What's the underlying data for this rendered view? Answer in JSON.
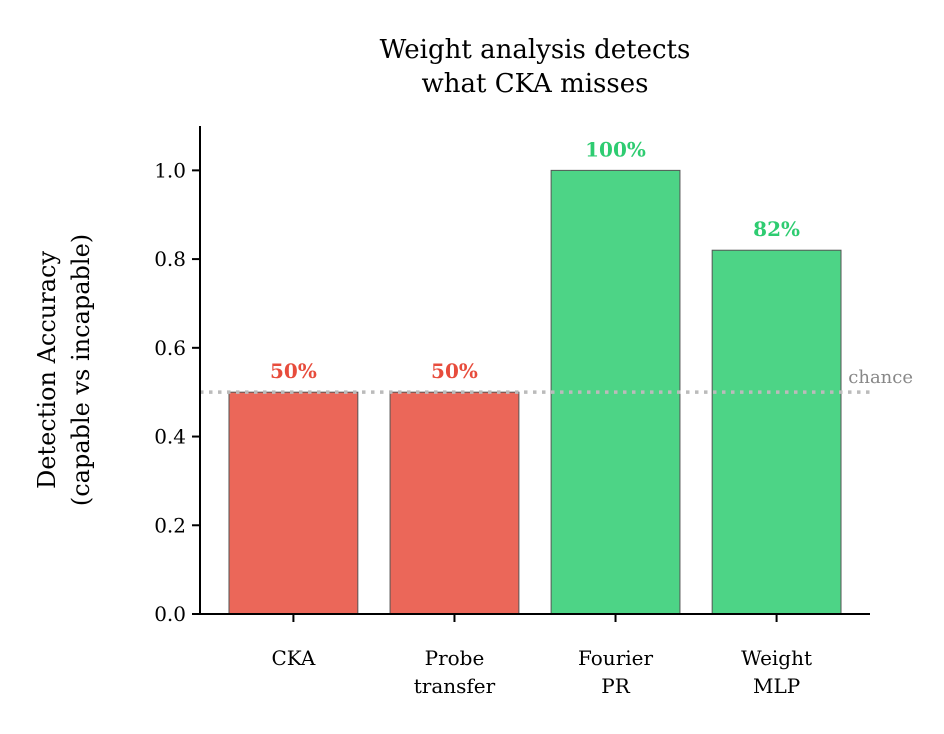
{
  "chart_data": {
    "type": "bar",
    "title": "Weight analysis detects\nwhat CKA misses",
    "xlabel": "",
    "ylabel": "Detection Accuracy\n(capable vs incapable)",
    "categories": [
      "CKA\n",
      "Probe\ntransfer",
      "Fourier\nPR",
      "Weight\nMLP"
    ],
    "values": [
      0.5,
      0.5,
      1.0,
      0.82
    ],
    "data_labels": [
      "50%",
      "50%",
      "100%",
      "82%"
    ],
    "bar_colors": [
      "#e74c3c",
      "#e74c3c",
      "#2ecc71",
      "#2ecc71"
    ],
    "label_colors": [
      "#e74c3c",
      "#e74c3c",
      "#2ecc71",
      "#2ecc71"
    ],
    "ylim": [
      0,
      1.1
    ],
    "yticks": [
      0.0,
      0.2,
      0.4,
      0.6,
      0.8,
      1.0
    ],
    "ytick_labels": [
      "0.0",
      "0.2",
      "0.4",
      "0.6",
      "0.8",
      "1.0"
    ],
    "reference_line": {
      "value": 0.5,
      "label": "chance",
      "style": "dotted",
      "color": "#bbbbbb"
    },
    "grid": false,
    "legend": "none"
  }
}
